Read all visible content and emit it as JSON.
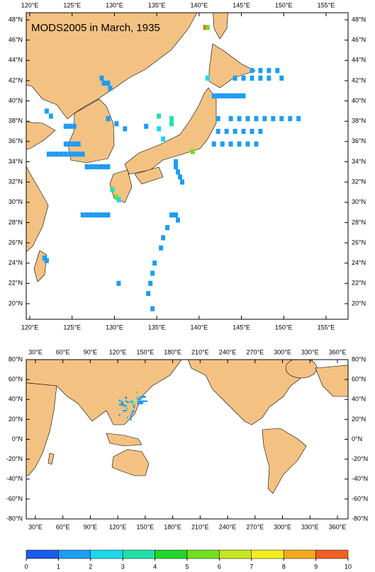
{
  "top_map": {
    "title": "MODS2005 in March, 1935",
    "xlim": [
      119.58,
      157.6
    ],
    "ylim": [
      18.46,
      48.7
    ],
    "xticks": [
      {
        "value": 120,
        "label": "120°E"
      },
      {
        "value": 125,
        "label": "125°E"
      },
      {
        "value": 130,
        "label": "130°E"
      },
      {
        "value": 135,
        "label": "135°E"
      },
      {
        "value": 140,
        "label": "140°E"
      },
      {
        "value": 145,
        "label": "145°E"
      },
      {
        "value": 150,
        "label": "150°E"
      },
      {
        "value": 155,
        "label": "155°E"
      }
    ],
    "yticks": [
      {
        "value": 20,
        "label": "20°N"
      },
      {
        "value": 22,
        "label": "22°N"
      },
      {
        "value": 24,
        "label": "24°N"
      },
      {
        "value": 26,
        "label": "26°N"
      },
      {
        "value": 28,
        "label": "28°N"
      },
      {
        "value": 30,
        "label": "30°N"
      },
      {
        "value": 32,
        "label": "32°N"
      },
      {
        "value": 34,
        "label": "34°N"
      },
      {
        "value": 36,
        "label": "36°N"
      },
      {
        "value": 38,
        "label": "38°N"
      },
      {
        "value": 40,
        "label": "40°N"
      },
      {
        "value": 42,
        "label": "42°N"
      },
      {
        "value": 44,
        "label": "44°N"
      },
      {
        "value": 46,
        "label": "46°N"
      },
      {
        "value": 48,
        "label": "48°N"
      }
    ]
  },
  "world_map": {
    "xlim": [
      20,
      371.6
    ],
    "ylim": [
      -80,
      80
    ],
    "xticks": [
      {
        "value": 30,
        "label": "30°E"
      },
      {
        "value": 60,
        "label": "60°E"
      },
      {
        "value": 90,
        "label": "90°E"
      },
      {
        "value": 120,
        "label": "120°E"
      },
      {
        "value": 150,
        "label": "150°E"
      },
      {
        "value": 180,
        "label": "180°E"
      },
      {
        "value": 210,
        "label": "210°E"
      },
      {
        "value": 240,
        "label": "240°E"
      },
      {
        "value": 270,
        "label": "270°E"
      },
      {
        "value": 300,
        "label": "300°E"
      },
      {
        "value": 330,
        "label": "330°E"
      },
      {
        "value": 360,
        "label": "360°E"
      }
    ],
    "yticks": [
      {
        "value": 80,
        "label": "80°N"
      },
      {
        "value": 60,
        "label": "60°N"
      },
      {
        "value": 40,
        "label": "40°N"
      },
      {
        "value": 20,
        "label": "20°N"
      },
      {
        "value": 0,
        "label": "0°N"
      },
      {
        "value": -20,
        "label": "-20°N"
      },
      {
        "value": -40,
        "label": "-40°N"
      },
      {
        "value": -60,
        "label": "-60°N"
      },
      {
        "value": -80,
        "label": "-80°N"
      }
    ]
  },
  "colorbar": {
    "ticks": [
      0,
      1,
      2,
      3,
      4,
      5,
      6,
      7,
      8,
      9,
      10
    ],
    "colors": [
      "#1a5de6",
      "#1e9cf2",
      "#1cd8ea",
      "#20e0a8",
      "#22d62a",
      "#70e01e",
      "#c8e61e",
      "#f2ee1e",
      "#f2aa1e",
      "#ee6020"
    ]
  },
  "observations": [
    [
      142.25,
      38.25,
      1
    ],
    [
      143.75,
      38.25,
      1
    ],
    [
      144.75,
      38.25,
      1
    ],
    [
      145.75,
      38.25,
      1
    ],
    [
      146.75,
      38.25,
      1
    ],
    [
      147.75,
      38.25,
      1
    ],
    [
      148.75,
      38.25,
      1
    ],
    [
      149.75,
      38.25,
      1
    ],
    [
      150.75,
      38.25,
      1
    ],
    [
      151.75,
      38.25,
      1
    ],
    [
      141.75,
      35.75,
      1
    ],
    [
      142.75,
      35.75,
      1
    ],
    [
      143.75,
      35.75,
      1
    ],
    [
      144.75,
      35.75,
      1
    ],
    [
      145.75,
      35.75,
      1
    ],
    [
      146.75,
      35.75,
      1
    ],
    [
      141.75,
      40.5,
      1.5
    ],
    [
      142.25,
      40.5,
      1.5
    ],
    [
      142.75,
      40.5,
      1.5
    ],
    [
      143.25,
      40.5,
      1.5
    ],
    [
      143.75,
      40.5,
      1.5
    ],
    [
      144.25,
      40.5,
      1.5
    ],
    [
      144.75,
      40.5,
      1.5
    ],
    [
      145.25,
      40.5,
      1.5
    ],
    [
      142.25,
      37,
      1
    ],
    [
      143.25,
      37,
      1
    ],
    [
      144.25,
      37,
      1
    ],
    [
      145.25,
      37,
      1
    ],
    [
      146.25,
      37,
      1
    ],
    [
      147.25,
      37,
      1
    ],
    [
      146.25,
      43,
      1
    ],
    [
      147.25,
      43,
      1
    ],
    [
      148.25,
      43,
      1
    ],
    [
      149.25,
      43,
      1
    ],
    [
      144.25,
      42.25,
      1
    ],
    [
      145.25,
      42.25,
      1
    ],
    [
      146.25,
      42.25,
      1
    ],
    [
      147.25,
      42.25,
      1
    ],
    [
      148.25,
      42.25,
      1
    ],
    [
      149.75,
      42.25,
      1
    ],
    [
      137.25,
      28.75,
      1
    ],
    [
      137.5,
      28.25,
      1
    ],
    [
      136.75,
      28.75,
      1
    ],
    [
      136.25,
      27.5,
      1
    ],
    [
      135.75,
      26.5,
      1
    ],
    [
      135.5,
      25.5,
      1
    ],
    [
      134.75,
      24,
      1
    ],
    [
      134.5,
      23,
      1
    ],
    [
      134.25,
      22,
      1
    ],
    [
      134,
      21,
      1
    ],
    [
      134.5,
      19.5,
      1
    ],
    [
      122.25,
      34.75,
      1.5
    ],
    [
      122.75,
      34.75,
      1.5
    ],
    [
      123.25,
      34.75,
      1.5
    ],
    [
      123.75,
      34.75,
      1.5
    ],
    [
      124.25,
      34.75,
      1.5
    ],
    [
      124.75,
      34.75,
      1.5
    ],
    [
      125.25,
      34.75,
      1.5
    ],
    [
      125.75,
      34.75,
      1.5
    ],
    [
      126.25,
      34.75,
      1.5
    ],
    [
      124.25,
      35.75,
      1
    ],
    [
      124.75,
      35.75,
      1
    ],
    [
      125.25,
      35.75,
      1
    ],
    [
      125.75,
      35.75,
      1
    ],
    [
      124.25,
      37.5,
      1.5
    ],
    [
      124.75,
      37.5,
      1.5
    ],
    [
      125.25,
      37.5,
      1.5
    ],
    [
      122,
      39,
      1.5
    ],
    [
      122.5,
      38.5,
      1.5
    ],
    [
      126.25,
      28.75,
      1
    ],
    [
      126.75,
      28.75,
      1
    ],
    [
      127.25,
      28.75,
      1
    ],
    [
      127.75,
      28.75,
      1
    ],
    [
      128.25,
      28.75,
      1
    ],
    [
      128.75,
      28.75,
      1
    ],
    [
      129.25,
      28.75,
      1
    ],
    [
      130.25,
      30.5,
      5
    ],
    [
      129.75,
      31.25,
      3
    ],
    [
      130.5,
      30.25,
      2.5
    ],
    [
      126.75,
      33.5,
      1.5
    ],
    [
      127.25,
      33.5,
      1.5
    ],
    [
      127.75,
      33.5,
      1.5
    ],
    [
      128.25,
      33.5,
      1.5
    ],
    [
      128.75,
      33.5,
      1.5
    ],
    [
      129.25,
      33.5,
      1.5
    ],
    [
      129.25,
      38.25,
      1.5
    ],
    [
      130.25,
      37.75,
      1.5
    ],
    [
      131.25,
      37.25,
      1.5
    ],
    [
      133.75,
      37.5,
      1.5
    ],
    [
      135.25,
      37.25,
      2.5
    ],
    [
      135.75,
      36.25,
      2.5
    ],
    [
      128.5,
      42.25,
      1.5
    ],
    [
      129.25,
      41.75,
      1.5
    ],
    [
      129.5,
      41.25,
      1.5
    ],
    [
      128.75,
      41.75,
      1.5
    ],
    [
      141,
      42.25,
      2.5
    ],
    [
      139.25,
      35,
      5
    ],
    [
      137.25,
      34,
      1
    ],
    [
      137.25,
      33.5,
      1
    ],
    [
      137.5,
      33,
      1
    ],
    [
      137.75,
      32.5,
      1
    ],
    [
      138,
      32,
      1
    ],
    [
      121.75,
      24.5,
      1.5
    ],
    [
      122,
      24.25,
      1.5
    ],
    [
      130.5,
      22,
      1.5
    ],
    [
      136.75,
      38.25,
      3
    ],
    [
      136.75,
      37.75,
      3
    ],
    [
      135.25,
      38.5,
      3
    ],
    [
      140.75,
      47.25,
      9.5
    ],
    [
      141,
      47.25,
      5
    ]
  ]
}
